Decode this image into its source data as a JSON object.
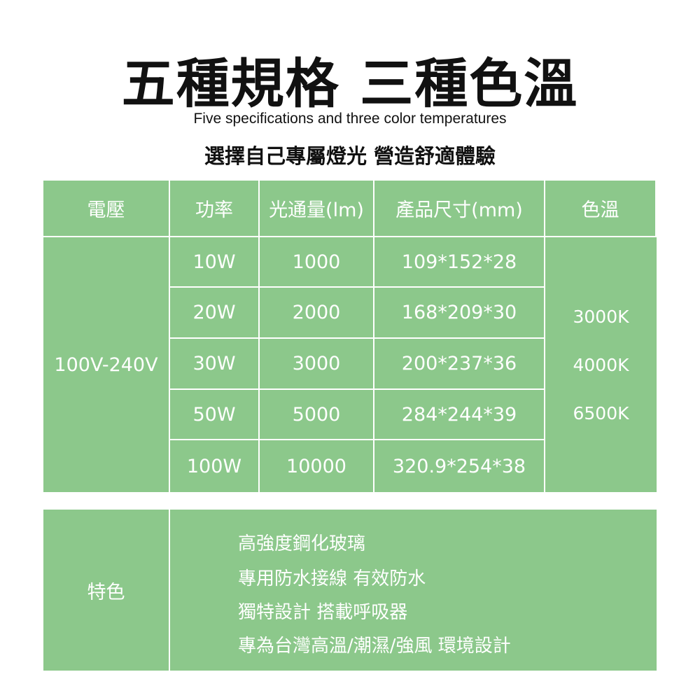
{
  "title": "五種規格 三種色溫",
  "subtitle": "Five specifications and three color temperatures",
  "tagline": "選擇自己專屬燈光 營造舒適體驗",
  "accent_color": "#8cc88b",
  "table": {
    "headers": [
      "電壓",
      "功率",
      "光通量(lm)",
      "產品尺寸(mm)",
      "色溫"
    ],
    "voltage": "100V-240V",
    "rows": [
      {
        "power": "10W",
        "lumen": "1000",
        "size": "109*152*28"
      },
      {
        "power": "20W",
        "lumen": "2000",
        "size": "168*209*30"
      },
      {
        "power": "30W",
        "lumen": "3000",
        "size": "200*237*36"
      },
      {
        "power": "50W",
        "lumen": "5000",
        "size": "284*244*39"
      },
      {
        "power": "100W",
        "lumen": "10000",
        "size": "320.9*254*38"
      }
    ],
    "color_temps": [
      "3000K",
      "4000K",
      "6500K"
    ]
  },
  "features": {
    "label": "特色",
    "items": [
      "高強度鋼化玻璃",
      "專用防水接線 有效防水",
      "獨特設計 搭載呼吸器",
      "專為台灣高溫/潮濕/強風 環境設計"
    ]
  }
}
